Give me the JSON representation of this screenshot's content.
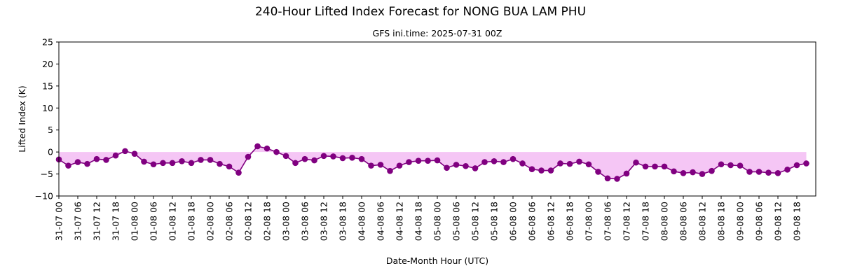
{
  "chart_data": {
    "type": "line",
    "title": "240-Hour Lifted Index Forecast for NONG BUA LAM PHU",
    "subtitle": "GFS ini.time: 2025-07-31 00Z",
    "xlabel": "Date-Month Hour (UTC)",
    "ylabel": "Lifted Index (K)",
    "ylim": [
      -10,
      25
    ],
    "yticks": [
      -10,
      -5,
      0,
      5,
      10,
      15,
      20,
      25
    ],
    "xlim_hours": [
      0,
      240
    ],
    "step_hours": 3,
    "x_tick_labels": [
      "31-07 00",
      "31-07 06",
      "31-07 12",
      "31-07 18",
      "01-08 00",
      "01-08 06",
      "01-08 12",
      "01-08 18",
      "02-08 00",
      "02-08 06",
      "02-08 12",
      "02-08 18",
      "03-08 00",
      "03-08 06",
      "03-08 12",
      "03-08 18",
      "04-08 00",
      "04-08 06",
      "04-08 12",
      "04-08 18",
      "05-08 00",
      "05-08 06",
      "05-08 12",
      "05-08 18",
      "06-08 00",
      "06-08 06",
      "06-08 12",
      "06-08 18",
      "07-08 00",
      "07-08 06",
      "07-08 12",
      "07-08 18",
      "08-08 00",
      "08-08 06",
      "08-08 12",
      "08-08 18",
      "09-08 00",
      "09-08 06",
      "09-08 12",
      "09-08 18"
    ],
    "grid": false,
    "colors": {
      "line": "#800080",
      "marker": "#800080",
      "fill": "#f5c6f5"
    },
    "series": [
      {
        "values": [
          -1.7,
          -3.1,
          -2.3,
          -2.7,
          -1.6,
          -1.8,
          -0.8,
          0.2,
          -0.4,
          -2.2,
          -2.8,
          -2.5,
          -2.5,
          -2.1,
          -2.5,
          -1.8,
          -1.8,
          -2.7,
          -3.3,
          -4.7,
          -1.1,
          1.3,
          0.8,
          0.0,
          -0.9,
          -2.5,
          -1.6,
          -1.9,
          -0.9,
          -1.0,
          -1.4,
          -1.3,
          -1.6,
          -3.1,
          -2.9,
          -4.3,
          -3.1,
          -2.3,
          -2.0,
          -2.0,
          -1.9,
          -3.6,
          -2.9,
          -3.2,
          -3.7,
          -2.3,
          -2.1,
          -2.3,
          -1.6,
          -2.6,
          -3.9,
          -4.2,
          -4.2,
          -2.6,
          -2.7,
          -2.2,
          -2.8,
          -4.5,
          -6.0,
          -6.1,
          -4.9,
          -2.4,
          -3.3,
          -3.3,
          -3.3,
          -4.4,
          -4.8,
          -4.6,
          -5.0,
          -4.3,
          -2.8,
          -3.0,
          -3.1,
          -4.5,
          -4.5,
          -4.7,
          -4.8,
          -4.0,
          -3.0,
          -2.6
        ]
      }
    ]
  }
}
